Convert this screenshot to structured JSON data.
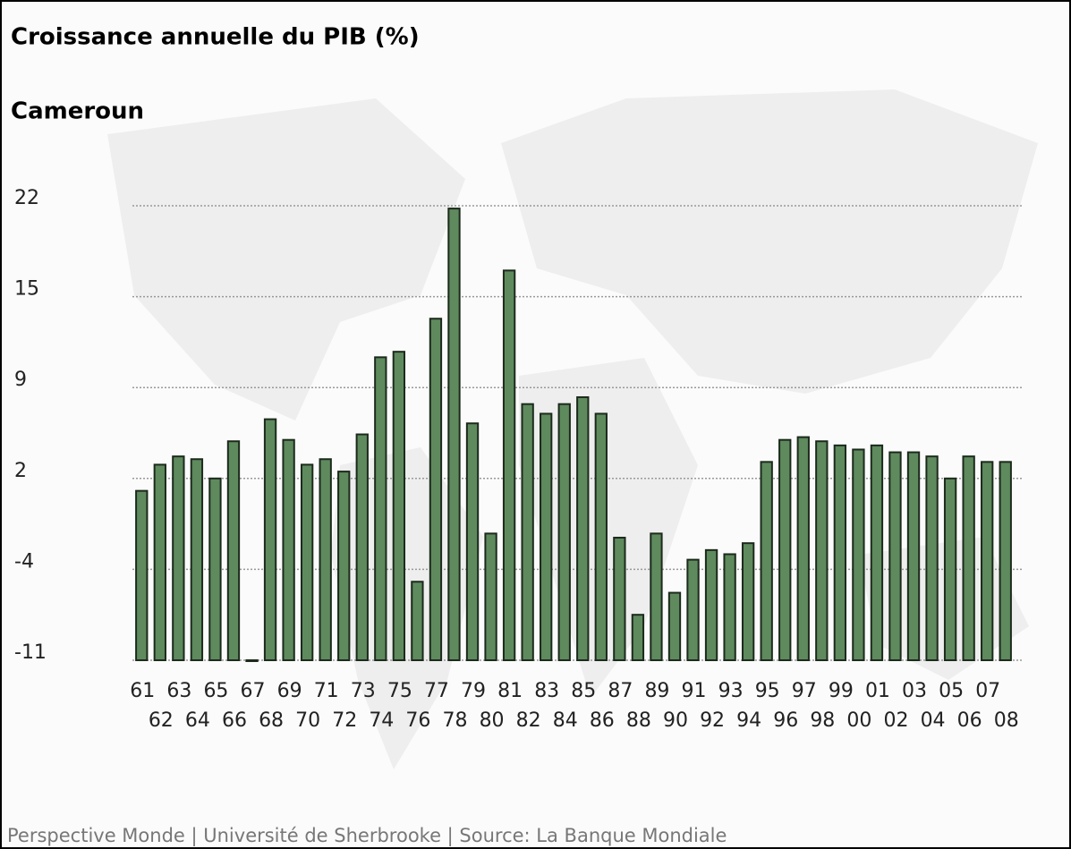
{
  "chart_data": {
    "type": "bar",
    "title": "Croissance annuelle du PIB (%)",
    "subtitle": "Cameroun",
    "footer": "Perspective Monde | Université de Sherbrooke | Source: La Banque Mondiale",
    "categories": [
      "61",
      "62",
      "63",
      "64",
      "65",
      "66",
      "67",
      "68",
      "69",
      "70",
      "71",
      "72",
      "73",
      "74",
      "75",
      "76",
      "77",
      "78",
      "79",
      "80",
      "81",
      "82",
      "83",
      "84",
      "85",
      "86",
      "87",
      "88",
      "89",
      "90",
      "91",
      "92",
      "93",
      "94",
      "95",
      "96",
      "97",
      "98",
      "99",
      "00",
      "01",
      "02",
      "03",
      "04",
      "05",
      "06",
      "07",
      "08"
    ],
    "values": [
      1.3,
      3.2,
      3.8,
      3.6,
      2.2,
      4.9,
      -11,
      6.5,
      5.0,
      3.2,
      3.6,
      2.7,
      5.4,
      11.0,
      11.4,
      -5.3,
      13.8,
      21.8,
      6.2,
      -1.8,
      17.3,
      7.6,
      6.9,
      7.6,
      8.1,
      6.9,
      -2.1,
      -7.7,
      -1.8,
      -6.1,
      -3.7,
      -3.0,
      -3.3,
      -2.5,
      3.4,
      5.0,
      5.2,
      4.9,
      4.6,
      4.3,
      4.6,
      4.1,
      4.1,
      3.8,
      2.2,
      3.8,
      3.4,
      3.4
    ],
    "color": "#5e8a5e",
    "ylim": [
      -11,
      22
    ],
    "yticks": [
      -11,
      {
        "value": -4.4,
        "label": "-4"
      },
      {
        "value": 2.2,
        "label": "2"
      },
      {
        "value": 8.8,
        "label": "9"
      },
      {
        "value": 15.4,
        "label": "15"
      },
      22
    ],
    "grid": true
  }
}
